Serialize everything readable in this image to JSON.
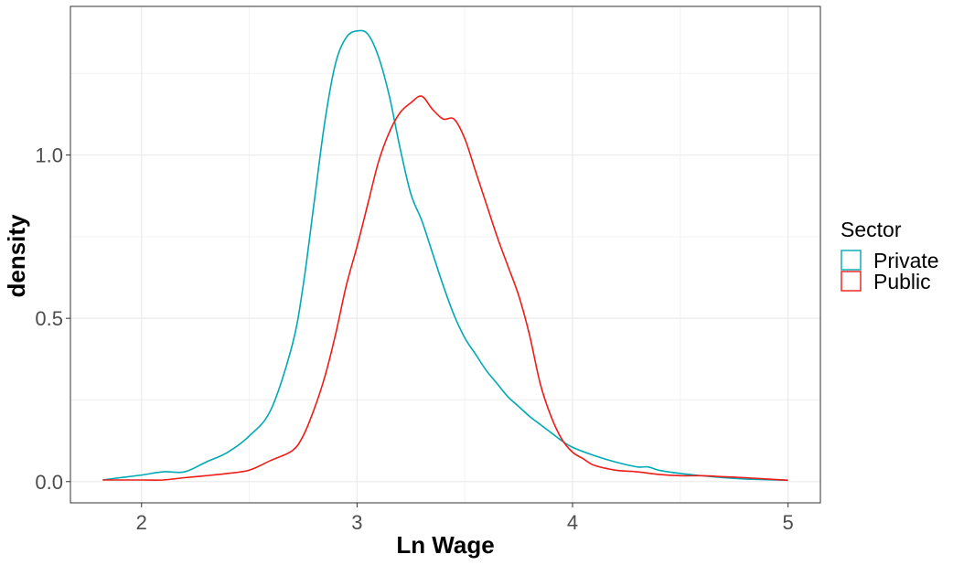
{
  "chart_data": {
    "type": "line",
    "title": "",
    "xlabel": "Ln Wage",
    "ylabel": "density",
    "xlim": [
      1.67,
      5.15
    ],
    "ylim": [
      -0.065,
      1.455
    ],
    "x_ticks": [
      2,
      3,
      4,
      5
    ],
    "x_tick_labels": [
      "2",
      "3",
      "4",
      "5"
    ],
    "y_ticks": [
      0.0,
      0.5,
      1.0
    ],
    "y_tick_labels": [
      "0.0",
      "0.5",
      "1.0"
    ],
    "grid": true,
    "theme": "bw",
    "legend": {
      "title": "Sector",
      "position": "right",
      "entries": [
        "Private",
        "Public"
      ]
    },
    "series": [
      {
        "name": "Private",
        "color": "#00A9B5",
        "x": [
          1.82,
          1.9,
          2.0,
          2.1,
          2.2,
          2.3,
          2.4,
          2.5,
          2.6,
          2.7,
          2.75,
          2.8,
          2.85,
          2.9,
          2.95,
          3.0,
          3.05,
          3.1,
          3.15,
          3.2,
          3.25,
          3.3,
          3.35,
          3.4,
          3.45,
          3.5,
          3.55,
          3.6,
          3.65,
          3.7,
          3.75,
          3.8,
          3.85,
          3.9,
          3.95,
          4.0,
          4.1,
          4.2,
          4.3,
          4.35,
          4.4,
          4.5,
          4.6,
          4.7,
          4.8,
          4.9,
          5.0
        ],
        "y": [
          0.005,
          0.012,
          0.02,
          0.03,
          0.03,
          0.06,
          0.09,
          0.14,
          0.22,
          0.42,
          0.6,
          0.85,
          1.1,
          1.28,
          1.36,
          1.38,
          1.37,
          1.3,
          1.18,
          1.02,
          0.88,
          0.8,
          0.7,
          0.6,
          0.51,
          0.44,
          0.39,
          0.34,
          0.3,
          0.26,
          0.23,
          0.2,
          0.175,
          0.15,
          0.125,
          0.105,
          0.08,
          0.06,
          0.045,
          0.045,
          0.035,
          0.025,
          0.018,
          0.012,
          0.008,
          0.006,
          0.004
        ]
      },
      {
        "name": "Public",
        "color": "#EE1C17",
        "x": [
          1.82,
          1.9,
          2.0,
          2.1,
          2.2,
          2.3,
          2.4,
          2.5,
          2.6,
          2.7,
          2.75,
          2.8,
          2.85,
          2.9,
          2.95,
          3.0,
          3.05,
          3.1,
          3.15,
          3.2,
          3.25,
          3.3,
          3.35,
          3.4,
          3.45,
          3.5,
          3.55,
          3.6,
          3.65,
          3.7,
          3.75,
          3.8,
          3.85,
          3.9,
          3.95,
          4.0,
          4.05,
          4.1,
          4.2,
          4.3,
          4.4,
          4.5,
          4.6,
          4.7,
          4.8,
          4.9,
          5.0
        ],
        "y": [
          0.005,
          0.005,
          0.005,
          0.005,
          0.012,
          0.018,
          0.025,
          0.035,
          0.065,
          0.095,
          0.14,
          0.22,
          0.32,
          0.45,
          0.6,
          0.72,
          0.85,
          0.98,
          1.07,
          1.13,
          1.16,
          1.18,
          1.14,
          1.11,
          1.11,
          1.05,
          0.95,
          0.85,
          0.75,
          0.66,
          0.57,
          0.45,
          0.3,
          0.2,
          0.13,
          0.09,
          0.07,
          0.05,
          0.035,
          0.03,
          0.022,
          0.018,
          0.018,
          0.015,
          0.012,
          0.008,
          0.004
        ]
      }
    ]
  }
}
